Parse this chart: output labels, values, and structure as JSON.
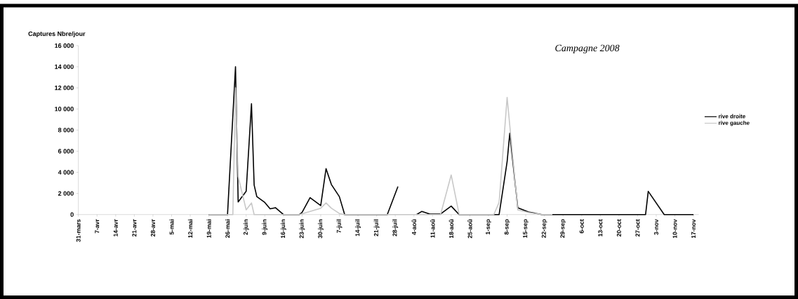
{
  "chart_data": {
    "type": "line",
    "title": "Campagne 2008",
    "ylabel": "Captures Nbre/jour",
    "xlim": [
      "2008-03-31",
      "2008-11-19"
    ],
    "ylim": [
      0,
      16000
    ],
    "xticks": [
      {
        "value": "2008-03-31",
        "label": "31-mars"
      },
      {
        "value": "2008-04-07",
        "label": "7-avr"
      },
      {
        "value": "2008-04-14",
        "label": "14-avr"
      },
      {
        "value": "2008-04-21",
        "label": "21-avr"
      },
      {
        "value": "2008-04-28",
        "label": "28-avr"
      },
      {
        "value": "2008-05-05",
        "label": "5-mai"
      },
      {
        "value": "2008-05-12",
        "label": "12-mai"
      },
      {
        "value": "2008-05-19",
        "label": "19-mai"
      },
      {
        "value": "2008-05-26",
        "label": "26-mai"
      },
      {
        "value": "2008-06-02",
        "label": "2-juin"
      },
      {
        "value": "2008-06-09",
        "label": "9-juin"
      },
      {
        "value": "2008-06-16",
        "label": "16-juin"
      },
      {
        "value": "2008-06-23",
        "label": "23-juin"
      },
      {
        "value": "2008-06-30",
        "label": "30-juin"
      },
      {
        "value": "2008-07-07",
        "label": "7-juil"
      },
      {
        "value": "2008-07-14",
        "label": "14-juil"
      },
      {
        "value": "2008-07-21",
        "label": "21-juil"
      },
      {
        "value": "2008-07-28",
        "label": "28-juil"
      },
      {
        "value": "2008-08-04",
        "label": "4-aoû"
      },
      {
        "value": "2008-08-11",
        "label": "11-aoû"
      },
      {
        "value": "2008-08-18",
        "label": "18-aoû"
      },
      {
        "value": "2008-08-25",
        "label": "25-aoû"
      },
      {
        "value": "2008-09-01",
        "label": "1-sep"
      },
      {
        "value": "2008-09-08",
        "label": "8-sep"
      },
      {
        "value": "2008-09-15",
        "label": "15-sep"
      },
      {
        "value": "2008-09-22",
        "label": "22-sep"
      },
      {
        "value": "2008-09-29",
        "label": "29-sep"
      },
      {
        "value": "2008-10-06",
        "label": "6-oct"
      },
      {
        "value": "2008-10-13",
        "label": "13-oct"
      },
      {
        "value": "2008-10-20",
        "label": "20-oct"
      },
      {
        "value": "2008-10-27",
        "label": "27-oct"
      },
      {
        "value": "2008-11-03",
        "label": "3-nov"
      },
      {
        "value": "2008-11-10",
        "label": "10-nov"
      },
      {
        "value": "2008-11-17",
        "label": "17-nov"
      }
    ],
    "yticks": [
      {
        "value": 0,
        "label": "0"
      },
      {
        "value": 2000,
        "label": "2 000"
      },
      {
        "value": 4000,
        "label": "4 000"
      },
      {
        "value": 6000,
        "label": "6 000"
      },
      {
        "value": 8000,
        "label": "8 000"
      },
      {
        "value": 10000,
        "label": "10 000"
      },
      {
        "value": 12000,
        "label": "12 000"
      },
      {
        "value": 14000,
        "label": "14 000"
      },
      {
        "value": 16000,
        "label": "16 000"
      }
    ],
    "legend": "right",
    "grid": false,
    "marker": "none",
    "line_style": "solid",
    "series": [
      {
        "name": "rive droite",
        "color": "#000000",
        "x": [
          "2008-05-19",
          "2008-05-26",
          "2008-05-29",
          "2008-05-30",
          "2008-06-02",
          "2008-06-04",
          "2008-06-05",
          "2008-06-06",
          "2008-06-09",
          "2008-06-11",
          "2008-06-13",
          "2008-06-16",
          "2008-06-22",
          "2008-06-23",
          "2008-06-26",
          "2008-06-30",
          "2008-07-02",
          "2008-07-04",
          "2008-07-07",
          "2008-07-09",
          "2008-07-25",
          "2008-07-29",
          "2008-08-01",
          "2008-08-05",
          "2008-08-07",
          "2008-08-10",
          "2008-08-14",
          "2008-08-18",
          "2008-08-21",
          "2008-09-05",
          "2008-09-08",
          "2008-09-09",
          "2008-09-12",
          "2008-09-16",
          "2008-09-21",
          "2008-10-30",
          "2008-10-31",
          "2008-11-06",
          "2008-11-17"
        ],
        "values": [
          0,
          0,
          14000,
          1200,
          2200,
          10500,
          2800,
          1700,
          1150,
          550,
          650,
          0,
          0,
          200,
          1600,
          850,
          4350,
          2850,
          1700,
          0,
          0,
          2650,
          null,
          0,
          300,
          50,
          50,
          800,
          0,
          0,
          5000,
          7700,
          650,
          250,
          0,
          0,
          2200,
          0,
          0
        ]
      },
      {
        "name": "rive gauche",
        "color": "#c8c8c8",
        "x": [
          "2008-05-19",
          "2008-05-28",
          "2008-05-29",
          "2008-05-30",
          "2008-06-02",
          "2008-06-04",
          "2008-06-05",
          "2008-06-22",
          "2008-06-26",
          "2008-06-30",
          "2008-07-02",
          "2008-07-04",
          "2008-07-07",
          "2008-07-09",
          "2008-08-14",
          "2008-08-18",
          "2008-08-21",
          "2008-09-03",
          "2008-09-05",
          "2008-09-08",
          "2008-09-12",
          "2008-09-16",
          "2008-09-21",
          "2008-09-25"
        ],
        "values": [
          0,
          0,
          12000,
          3600,
          450,
          1100,
          0,
          0,
          300,
          600,
          1100,
          600,
          100,
          0,
          0,
          3750,
          0,
          0,
          1150,
          11100,
          450,
          200,
          0,
          0
        ]
      }
    ]
  }
}
